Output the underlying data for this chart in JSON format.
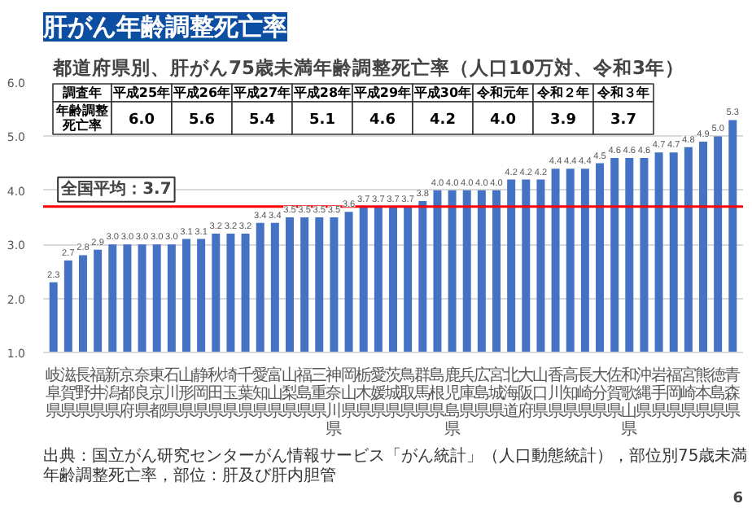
{
  "chart_data": [
    {
      "type": "bar",
      "title": "肝がん年齢調整死亡率",
      "subtitle": "都道府県別、肝がん75歳未満年齢調整死亡率（人口10万対、令和3年）",
      "categories": [
        "岐阜県",
        "滋賀県",
        "長野県",
        "福井県",
        "新潟県",
        "京都府",
        "奈良県",
        "東京都",
        "石川県",
        "山形県",
        "静岡県",
        "秋田県",
        "埼玉県",
        "千葉県",
        "愛知県",
        "富山県",
        "山梨県",
        "福島県",
        "三重県",
        "神奈川県",
        "岡山県",
        "栃木県",
        "愛媛県",
        "茨城県",
        "鳥取県",
        "群馬県",
        "島根県",
        "鹿児島県",
        "兵庫県",
        "広島県",
        "宮城県",
        "北海道",
        "大阪府",
        "山口県",
        "香川県",
        "高知県",
        "長崎県",
        "大分県",
        "佐賀県",
        "和歌山県",
        "沖縄県",
        "岩手県",
        "福岡県",
        "宮崎県",
        "熊本県",
        "徳島県",
        "青森県"
      ],
      "values": [
        2.3,
        2.7,
        2.8,
        2.9,
        3.0,
        3.0,
        3.0,
        3.0,
        3.0,
        3.1,
        3.1,
        3.2,
        3.2,
        3.2,
        3.4,
        3.4,
        3.5,
        3.5,
        3.5,
        3.5,
        3.6,
        3.7,
        3.7,
        3.7,
        3.7,
        3.8,
        4.0,
        4.0,
        4.0,
        4.0,
        4.0,
        4.2,
        4.2,
        4.2,
        4.4,
        4.4,
        4.4,
        4.5,
        4.6,
        4.6,
        4.6,
        4.7,
        4.7,
        4.8,
        4.9,
        5.0,
        5.3
      ],
      "color": "#4472c4",
      "ylim": [
        1.0,
        6.0
      ],
      "value_labels": [
        "2.3",
        "2.7",
        "2.8",
        "2.9",
        "3.0",
        "3.0",
        "3.0",
        "3.0",
        "3.0",
        "3.1",
        "3.1",
        "3.2",
        "3.2",
        "3.2",
        "3.4",
        "3.4",
        "3.5",
        "3.5",
        "3.5",
        "3.5",
        "3.6",
        "3.7",
        "3.7",
        "3.7",
        "3.7",
        "3.8",
        "4.0",
        "4.0",
        "4.0",
        "4.0",
        "4.0",
        "4.2",
        "4.2",
        "4.2",
        "4.4",
        "4.4",
        "4.4",
        "4.5",
        "4.6",
        "4.6",
        "4.6",
        "4.7",
        "4.7",
        "4.8",
        "4.9",
        "5.0",
        "5.3"
      ],
      "yticks": [
        {
          "value": 1,
          "label": "1.0"
        },
        {
          "value": 2,
          "label": "2.0"
        },
        {
          "value": 3,
          "label": "3.0"
        },
        {
          "value": 4,
          "label": "4.0"
        },
        {
          "value": 5,
          "label": "5.0"
        },
        {
          "value": 6,
          "label": "6.0"
        }
      ],
      "grid": "y",
      "ref_lines": [
        {
          "axis": "y",
          "value": 3.7,
          "label": "全国平均：3.7",
          "color": "#ff0000"
        }
      ],
      "annotations": [
        "出典：国立がん研究センターがん情報サービス「がん統計」（人口動態統計），部位別75歳未満年齢調整死亡率，部位：肝及び肝内胆管",
        "6"
      ]
    },
    {
      "type": "other",
      "xlabel": "調査年",
      "ylabel": "年齢調整死亡率",
      "categories": [
        "平成25年",
        "平成26年",
        "平成27年",
        "平成28年",
        "平成29年",
        "平成30年",
        "令和元年",
        "令和２年",
        "令和３年"
      ],
      "value_labels": [
        "6.0",
        "5.6",
        "5.4",
        "5.1",
        "4.6",
        "4.2",
        "4.0",
        "3.9",
        "3.7"
      ]
    }
  ]
}
